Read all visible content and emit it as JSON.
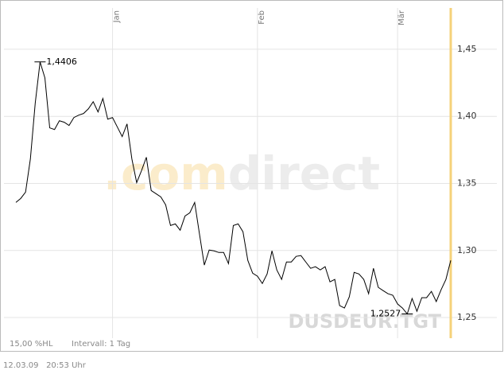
{
  "chart_data": {
    "type": "line",
    "watermark_prefix": ".com",
    "watermark_main": "direct",
    "symbol": "DUSDEUR.TGT",
    "footer_left": "15,00 %HL",
    "footer_interval": "Intervall: 1 Tag",
    "timestamp": "12.03.09   20:53 Uhr",
    "categories": [
      null,
      null,
      null,
      null,
      null,
      null,
      null,
      null,
      null,
      null,
      null,
      null,
      null,
      null,
      null,
      null,
      null,
      null,
      null,
      null,
      "Jan",
      null,
      null,
      null,
      null,
      null,
      null,
      null,
      null,
      null,
      null,
      null,
      null,
      null,
      null,
      null,
      null,
      null,
      null,
      null,
      null,
      null,
      null,
      null,
      null,
      null,
      null,
      null,
      null,
      null,
      "Feb",
      null,
      null,
      null,
      null,
      null,
      null,
      null,
      null,
      null,
      null,
      null,
      null,
      null,
      null,
      null,
      null,
      null,
      null,
      null,
      null,
      null,
      null,
      null,
      null,
      null,
      null,
      null,
      null,
      "Mär",
      null,
      null,
      null,
      null,
      null,
      null,
      null,
      null,
      null,
      null,
      null
    ],
    "values": [
      1.3358,
      1.3388,
      1.3435,
      1.3683,
      1.4098,
      1.4406,
      1.4287,
      1.3914,
      1.3902,
      1.3967,
      1.3956,
      1.3932,
      1.3991,
      1.4009,
      1.4021,
      1.4056,
      1.4109,
      1.4033,
      1.4133,
      1.3979,
      1.3991,
      1.392,
      1.3849,
      1.3944,
      1.3683,
      1.3506,
      1.3595,
      1.3695,
      1.3447,
      1.3423,
      1.3399,
      1.334,
      1.3186,
      1.3198,
      1.3151,
      1.3257,
      1.3281,
      1.3358,
      1.3121,
      1.2891,
      1.3003,
      1.2997,
      1.2985,
      1.2985,
      1.2902,
      1.3186,
      1.3198,
      1.3139,
      1.2926,
      1.2831,
      1.2808,
      1.2754,
      1.2825,
      1.2997,
      1.2855,
      1.2784,
      1.2914,
      1.2914,
      1.2956,
      1.2962,
      1.2914,
      1.2867,
      1.2879,
      1.2855,
      1.2879,
      1.2766,
      1.2784,
      1.2589,
      1.2571,
      1.2654,
      1.2837,
      1.2825,
      1.2784,
      1.2678,
      1.2867,
      1.2725,
      1.2701,
      1.2678,
      1.2666,
      1.2601,
      1.2571,
      1.2527,
      1.2642,
      1.2547,
      1.2648,
      1.2648,
      1.2695,
      1.2619,
      1.2707,
      1.2784,
      1.2926
    ],
    "value_labels": [
      null,
      null,
      null,
      null,
      null,
      "1,4406",
      null,
      null,
      null,
      null,
      null,
      null,
      null,
      null,
      null,
      null,
      null,
      null,
      null,
      null,
      null,
      null,
      null,
      null,
      null,
      null,
      null,
      null,
      null,
      null,
      null,
      null,
      null,
      null,
      null,
      null,
      null,
      null,
      null,
      null,
      null,
      null,
      null,
      null,
      null,
      null,
      null,
      null,
      null,
      null,
      null,
      null,
      null,
      null,
      null,
      null,
      null,
      null,
      null,
      null,
      null,
      null,
      null,
      null,
      null,
      null,
      null,
      null,
      null,
      null,
      null,
      null,
      null,
      null,
      null,
      null,
      null,
      null,
      null,
      null,
      null,
      "1,2527",
      null,
      null,
      null,
      null,
      null,
      null,
      null,
      null,
      null
    ],
    "color": "#000000",
    "marker_color": "#f5d27a",
    "ylim": [
      1.2346,
      1.4808
    ],
    "yticks": [
      {
        "value": 1.25,
        "label": "1,25"
      },
      {
        "value": 1.3,
        "label": "1,30"
      },
      {
        "value": 1.35,
        "label": "1,35"
      },
      {
        "value": 1.4,
        "label": "1,40"
      },
      {
        "value": 1.45,
        "label": "1,45"
      }
    ],
    "grid": true
  }
}
